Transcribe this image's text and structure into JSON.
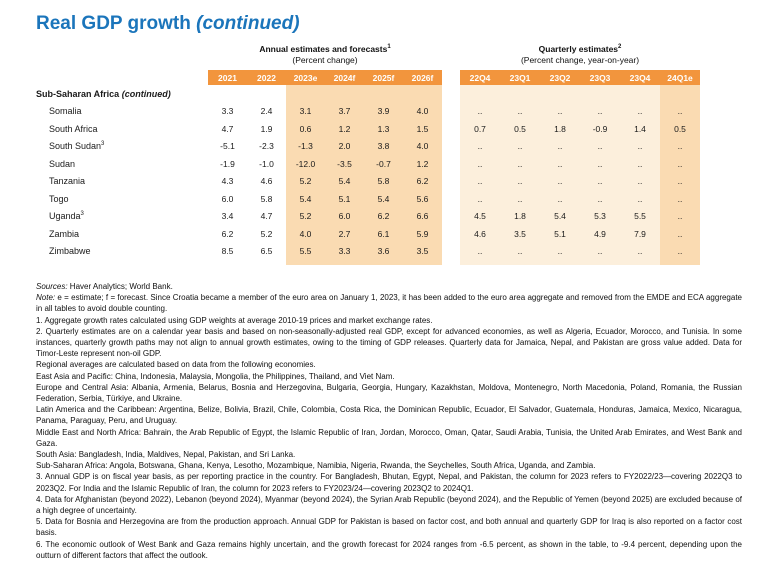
{
  "page": {
    "title": "Real GDP growth",
    "title_suffix": "(continued)"
  },
  "colors": {
    "title_blue": "#1b75bb",
    "header_orange": "#f2953d",
    "forecast_fill": "#fadbb2",
    "quarterly_fill": "#fcefdc"
  },
  "table": {
    "groups": [
      {
        "label": "Annual estimates and forecasts",
        "sup": "1",
        "subtitle": "(Percent change)"
      },
      {
        "label": "Quarterly estimates",
        "sup": "2",
        "subtitle": "(Percent change, year-on-year)"
      }
    ],
    "annual_columns": [
      "2021",
      "2022",
      "2023e",
      "2024f",
      "2025f",
      "2026f"
    ],
    "quarterly_columns": [
      "22Q4",
      "23Q1",
      "23Q2",
      "23Q3",
      "23Q4",
      "24Q1e"
    ],
    "section_label": "Sub-Saharan Africa",
    "section_continued": "(continued)",
    "rows": [
      {
        "country": "Somalia",
        "sup": "",
        "annual": [
          "3.3",
          "2.4",
          "3.1",
          "3.7",
          "3.9",
          "4.0"
        ],
        "quarterly": [
          "..",
          "..",
          "..",
          "..",
          "..",
          ".."
        ]
      },
      {
        "country": "South Africa",
        "sup": "",
        "annual": [
          "4.7",
          "1.9",
          "0.6",
          "1.2",
          "1.3",
          "1.5"
        ],
        "quarterly": [
          "0.7",
          "0.5",
          "1.8",
          "-0.9",
          "1.4",
          "0.5"
        ]
      },
      {
        "country": "South Sudan",
        "sup": "3",
        "annual": [
          "-5.1",
          "-2.3",
          "-1.3",
          "2.0",
          "3.8",
          "4.0"
        ],
        "quarterly": [
          "..",
          "..",
          "..",
          "..",
          "..",
          ".."
        ]
      },
      {
        "country": "Sudan",
        "sup": "",
        "annual": [
          "-1.9",
          "-1.0",
          "-12.0",
          "-3.5",
          "-0.7",
          "1.2"
        ],
        "quarterly": [
          "..",
          "..",
          "..",
          "..",
          "..",
          ".."
        ]
      },
      {
        "country": "Tanzania",
        "sup": "",
        "annual": [
          "4.3",
          "4.6",
          "5.2",
          "5.4",
          "5.8",
          "6.2"
        ],
        "quarterly": [
          "..",
          "..",
          "..",
          "..",
          "..",
          ".."
        ]
      },
      {
        "country": "Togo",
        "sup": "",
        "annual": [
          "6.0",
          "5.8",
          "5.4",
          "5.1",
          "5.4",
          "5.6"
        ],
        "quarterly": [
          "..",
          "..",
          "..",
          "..",
          "..",
          ".."
        ]
      },
      {
        "country": "Uganda",
        "sup": "3",
        "annual": [
          "3.4",
          "4.7",
          "5.2",
          "6.0",
          "6.2",
          "6.6"
        ],
        "quarterly": [
          "4.5",
          "1.8",
          "5.4",
          "5.3",
          "5.5",
          ".."
        ]
      },
      {
        "country": "Zambia",
        "sup": "",
        "annual": [
          "6.2",
          "5.2",
          "4.0",
          "2.7",
          "6.1",
          "5.9"
        ],
        "quarterly": [
          "4.6",
          "3.5",
          "5.1",
          "4.9",
          "7.9",
          ".."
        ]
      },
      {
        "country": "Zimbabwe",
        "sup": "",
        "annual": [
          "8.5",
          "6.5",
          "5.5",
          "3.3",
          "3.6",
          "3.5"
        ],
        "quarterly": [
          "..",
          "..",
          "..",
          "..",
          "..",
          ".."
        ]
      }
    ]
  },
  "footnotes": [
    {
      "lead": "Sources:",
      "text": " Haver Analytics; World Bank."
    },
    {
      "lead": "Note:",
      "text": " e = estimate; f = forecast. Since Croatia became a member of the euro area on January 1, 2023, it has been added to the euro area aggregate and removed from the EMDE and ECA aggregate in all tables to avoid double counting."
    },
    {
      "lead": "",
      "text": "1. Aggregate growth rates calculated using GDP weights at average 2010-19 prices and market exchange rates."
    },
    {
      "lead": "",
      "text": "2. Quarterly estimates are on a calendar year basis and based on non-seasonally-adjusted real GDP, except for advanced economies, as well as Algeria, Ecuador, Morocco, and Tunisia. In some instances, quarterly growth paths may not align to annual growth estimates, owing to the timing of GDP releases. Quarterly data for Jamaica, Nepal, and Pakistan are gross value added. Data for Timor-Leste represent non-oil GDP."
    },
    {
      "lead": "",
      "text": "Regional averages are calculated based on data from the following economies."
    },
    {
      "lead": "",
      "text": "East Asia and Pacific: China, Indonesia, Malaysia, Mongolia, the Philippines, Thailand, and Viet Nam."
    },
    {
      "lead": "",
      "text": "Europe and Central Asia: Albania, Armenia, Belarus, Bosnia and Herzegovina, Bulgaria, Georgia, Hungary, Kazakhstan, Moldova, Montenegro, North Macedonia, Poland, Romania, the Russian Federation, Serbia, Türkiye, and Ukraine."
    },
    {
      "lead": "",
      "text": "Latin America and the Caribbean: Argentina, Belize, Bolivia, Brazil, Chile, Colombia, Costa Rica, the Dominican Republic, Ecuador, El Salvador, Guatemala, Honduras, Jamaica, Mexico, Nicaragua, Panama, Paraguay, Peru, and Uruguay."
    },
    {
      "lead": "",
      "text": "Middle East and North Africa: Bahrain, the Arab Republic of Egypt, the Islamic Republic of Iran, Jordan, Morocco, Oman, Qatar, Saudi Arabia, Tunisia, the United Arab Emirates, and West Bank and Gaza."
    },
    {
      "lead": "",
      "text": "South Asia: Bangladesh, India, Maldives, Nepal, Pakistan, and Sri Lanka."
    },
    {
      "lead": "",
      "text": "Sub-Saharan Africa: Angola, Botswana, Ghana, Kenya, Lesotho, Mozambique, Namibia, Nigeria, Rwanda, the Seychelles, South Africa, Uganda, and Zambia."
    },
    {
      "lead": "",
      "text": "3. Annual GDP is on fiscal year basis, as per reporting practice in the country. For Bangladesh, Bhutan, Egypt, Nepal, and Pakistan, the column for 2023 refers to FY2022/23—covering 2022Q3 to 2023Q2. For India and the Islamic Republic of Iran, the column for 2023 refers to FY2023/24—covering 2023Q2 to 2024Q1."
    },
    {
      "lead": "",
      "text": "4. Data for Afghanistan (beyond 2022), Lebanon (beyond 2024), Myanmar (beyond 2024), the Syrian Arab Republic (beyond 2024), and the Republic of Yemen (beyond 2025) are excluded because of a high degree of uncertainty."
    },
    {
      "lead": "",
      "text": "5. Data for Bosnia and Herzegovina are from the production approach. Annual GDP for Pakistan is based on factor cost, and both annual and quarterly GDP for Iraq is also reported on a factor cost basis."
    },
    {
      "lead": "",
      "text": "6. The economic outlook of West Bank and Gaza remains highly uncertain, and the growth forecast for 2024 ranges from -6.5 percent, as shown in the table, to -9.4 percent, depending upon the outturn of different factors that affect the outlook."
    }
  ]
}
